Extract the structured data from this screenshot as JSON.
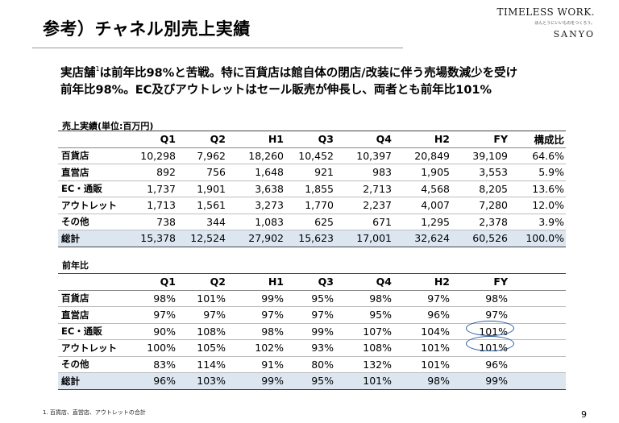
{
  "header": {
    "title": "参考）チャネル別売上実績",
    "logo_main": "TIMELESS WORK.",
    "logo_sub": "ほんとうにいいものをつくろう。",
    "logo_brand": "SANYO"
  },
  "lead": {
    "part1": "実店舗",
    "footnote_mark": "1",
    "part2": "は前年比98%と苦戦。特に百貨店は館自体の閉店/改装に伴う売場数減少を受け",
    "line2": "前年比98%。EC及びアウトレットはセール販売が伸長し、両者とも前年比101%"
  },
  "sales": {
    "label": "売上実績(単位:百万円)",
    "headers": [
      "",
      "Q1",
      "Q2",
      "H1",
      "Q3",
      "Q4",
      "H2",
      "FY",
      "構成比"
    ],
    "rows": [
      [
        "百貨店",
        "10,298",
        "7,962",
        "18,260",
        "10,452",
        "10,397",
        "20,849",
        "39,109",
        "64.6%"
      ],
      [
        "直営店",
        "892",
        "756",
        "1,648",
        "921",
        "983",
        "1,905",
        "3,553",
        "5.9%"
      ],
      [
        "EC・通販",
        "1,737",
        "1,901",
        "3,638",
        "1,855",
        "2,713",
        "4,568",
        "8,205",
        "13.6%"
      ],
      [
        "アウトレット",
        "1,713",
        "1,561",
        "3,273",
        "1,770",
        "2,237",
        "4,007",
        "7,280",
        "12.0%"
      ],
      [
        "その他",
        "738",
        "344",
        "1,083",
        "625",
        "671",
        "1,295",
        "2,378",
        "3.9%"
      ],
      [
        "総計",
        "15,378",
        "12,524",
        "27,902",
        "15,623",
        "17,001",
        "32,624",
        "60,526",
        "100.0%"
      ]
    ]
  },
  "yoy": {
    "label": "前年比",
    "headers": [
      "",
      "Q1",
      "Q2",
      "H1",
      "Q3",
      "Q4",
      "H2",
      "FY",
      ""
    ],
    "rows": [
      [
        "百貨店",
        "98%",
        "101%",
        "99%",
        "95%",
        "98%",
        "97%",
        "98%",
        ""
      ],
      [
        "直営店",
        "97%",
        "97%",
        "97%",
        "97%",
        "95%",
        "96%",
        "97%",
        ""
      ],
      [
        "EC・通販",
        "90%",
        "108%",
        "98%",
        "99%",
        "107%",
        "104%",
        "101%",
        ""
      ],
      [
        "アウトレット",
        "100%",
        "105%",
        "102%",
        "93%",
        "108%",
        "101%",
        "101%",
        ""
      ],
      [
        "その他",
        "83%",
        "114%",
        "91%",
        "80%",
        "132%",
        "101%",
        "96%",
        ""
      ],
      [
        "総計",
        "96%",
        "103%",
        "99%",
        "95%",
        "101%",
        "98%",
        "99%",
        ""
      ]
    ]
  },
  "footer": {
    "footnote": "1. 百貨店、直営店、アウトレットの合計",
    "page": "9"
  },
  "colors": {
    "total_row_bg": "#dce6f0",
    "highlight_oval": "#2a5aa0"
  }
}
